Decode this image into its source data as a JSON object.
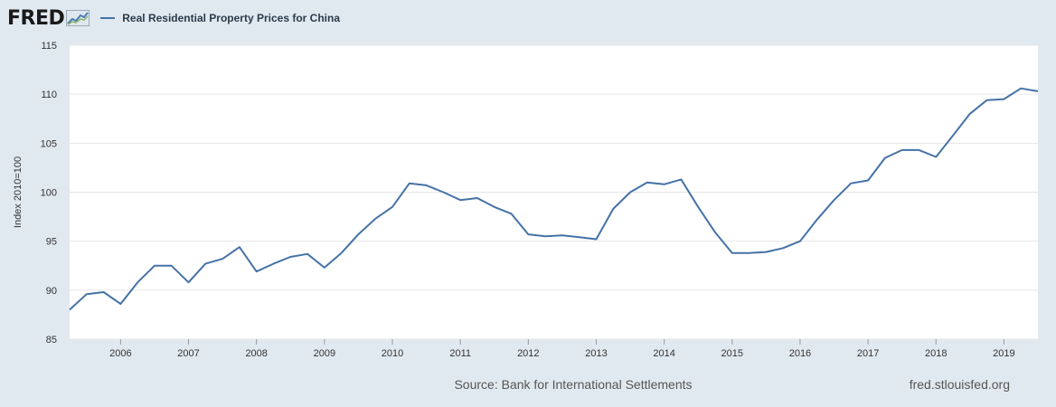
{
  "header": {
    "logo_text": "FRED",
    "series_title": "Real Residential Property Prices for China"
  },
  "footer": {
    "source": "Source: Bank for International Settlements",
    "site": "fred.stlouisfed.org"
  },
  "colors": {
    "background": "#e1e9f0",
    "plot": "#ffffff",
    "line": "#4572a7",
    "grid": "#e6e6e6"
  },
  "chart_data": {
    "type": "line",
    "title": "Real Residential Property Prices for China",
    "xlabel": "",
    "ylabel": "Index 2010=100",
    "ylim": [
      85,
      115
    ],
    "yticks": [
      85,
      90,
      95,
      100,
      105,
      110,
      115
    ],
    "xlim": [
      2005.25,
      2019.5
    ],
    "xticks": [
      "2006",
      "2007",
      "2008",
      "2009",
      "2010",
      "2011",
      "2012",
      "2013",
      "2014",
      "2015",
      "2016",
      "2017",
      "2018",
      "2019"
    ],
    "grid": true,
    "series": [
      {
        "name": "Real Residential Property Prices for China",
        "x": [
          "2005-04-01",
          "2005-07-01",
          "2005-10-01",
          "2006-01-01",
          "2006-04-01",
          "2006-07-01",
          "2006-10-01",
          "2007-01-01",
          "2007-04-01",
          "2007-07-01",
          "2007-10-01",
          "2008-01-01",
          "2008-04-01",
          "2008-07-01",
          "2008-10-01",
          "2009-01-01",
          "2009-04-01",
          "2009-07-01",
          "2009-10-01",
          "2010-01-01",
          "2010-04-01",
          "2010-07-01",
          "2010-10-01",
          "2011-01-01",
          "2011-04-01",
          "2011-07-01",
          "2011-10-01",
          "2012-01-01",
          "2012-04-01",
          "2012-07-01",
          "2012-10-01",
          "2013-01-01",
          "2013-04-01",
          "2013-07-01",
          "2013-10-01",
          "2014-01-01",
          "2014-04-01",
          "2014-07-01",
          "2014-10-01",
          "2015-01-01",
          "2015-04-01",
          "2015-07-01",
          "2015-10-01",
          "2016-01-01",
          "2016-04-01",
          "2016-07-01",
          "2016-10-01",
          "2017-01-01",
          "2017-04-01",
          "2017-07-01",
          "2017-10-01",
          "2018-01-01",
          "2018-04-01",
          "2018-07-01",
          "2018-10-01",
          "2019-01-01",
          "2019-04-01",
          "2019-07-01"
        ],
        "values": [
          88.0,
          89.6,
          89.8,
          88.6,
          90.8,
          92.5,
          92.5,
          90.8,
          92.7,
          93.2,
          94.4,
          91.9,
          92.7,
          93.4,
          93.7,
          92.3,
          93.8,
          95.7,
          97.3,
          98.5,
          100.9,
          100.7,
          100.0,
          99.2,
          99.4,
          98.5,
          97.8,
          95.7,
          95.5,
          95.6,
          95.4,
          95.2,
          98.3,
          100.0,
          101.0,
          100.8,
          101.3,
          98.5,
          95.9,
          93.8,
          93.8,
          93.9,
          94.3,
          95.0,
          97.2,
          99.2,
          100.9,
          101.2,
          103.5,
          104.3,
          104.3,
          103.6,
          105.8,
          108.0,
          109.4,
          109.5,
          110.6,
          110.3
        ]
      }
    ]
  }
}
